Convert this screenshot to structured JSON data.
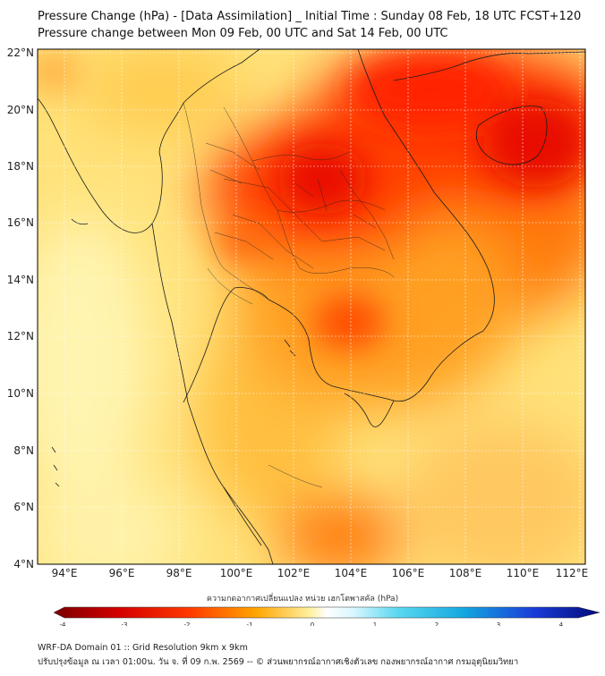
{
  "title_line1": "Pressure Change (hPa) - [Data Assimilation] _ Initial Time : Sunday 08 Feb, 18 UTC FCST+120",
  "title_line2": "Pressure change between Mon 09 Feb, 00 UTC and Sat 14 Feb, 00 UTC",
  "lat_labels": [
    "22°N",
    "20°N",
    "18°N",
    "16°N",
    "14°N",
    "12°N",
    "10°N",
    "8°N",
    "6°N",
    "4°N"
  ],
  "lon_labels": [
    "94°E",
    "96°E",
    "98°E",
    "100°E",
    "102°E",
    "104°E",
    "106°E",
    "108°E",
    "110°E",
    "112°E"
  ],
  "colorbar": {
    "label": "ความกดอากาศเปลี่ยนแปลง หน่วย เฮกโตพาสคัล (hPa)",
    "ticks": [
      "-4",
      "-3",
      "-2",
      "-1",
      "0",
      "1",
      "2",
      "3",
      "4"
    ],
    "min": -4,
    "max": 4
  },
  "footer_line1": "WRF-DA Domain 01 :: Grid Resolution 9km x 9km",
  "footer_line2": "ปรับปรุงข้อมูล ณ เวลา 01:00น. วัน จ. ที่ 09 ก.พ. 2569 -- © ส่วนพยากรณ์อากาศเชิงตัวเลข กองพยากรณ์อากาศ กรมอุตุนิยมวิทยา",
  "colors": {
    "deep_red": "#d40000",
    "red": "#ff1a00",
    "orange": "#ff6a00",
    "amber": "#ffb000",
    "yellow": "#ffe060",
    "pale": "#fff6b8"
  }
}
